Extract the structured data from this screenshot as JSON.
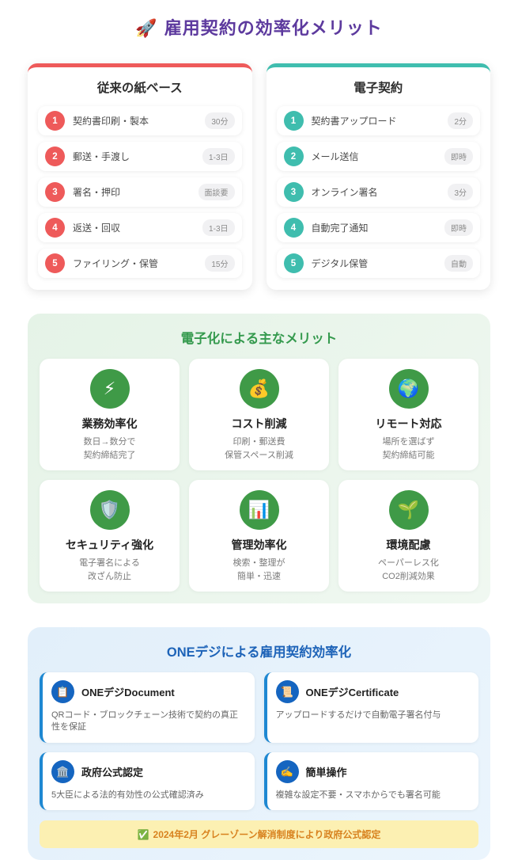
{
  "page": {
    "title": "雇用契約の効率化メリット",
    "title_icon": "🚀",
    "title_color": "#5d3a9e"
  },
  "comparison": {
    "paper": {
      "title": "従来の紙ベース",
      "accent_color": "#ee5a5a",
      "steps": [
        {
          "num": "1",
          "label": "契約書印刷・製本",
          "badge": "30分"
        },
        {
          "num": "2",
          "label": "郵送・手渡し",
          "badge": "1-3日"
        },
        {
          "num": "3",
          "label": "署名・押印",
          "badge": "面談要"
        },
        {
          "num": "4",
          "label": "返送・回収",
          "badge": "1-3日"
        },
        {
          "num": "5",
          "label": "ファイリング・保管",
          "badge": "15分"
        }
      ]
    },
    "digital": {
      "title": "電子契約",
      "accent_color": "#3fbdae",
      "steps": [
        {
          "num": "1",
          "label": "契約書アップロード",
          "badge": "2分"
        },
        {
          "num": "2",
          "label": "メール送信",
          "badge": "即時"
        },
        {
          "num": "3",
          "label": "オンライン署名",
          "badge": "3分"
        },
        {
          "num": "4",
          "label": "自動完了通知",
          "badge": "即時"
        },
        {
          "num": "5",
          "label": "デジタル保管",
          "badge": "自動"
        }
      ]
    }
  },
  "benefits": {
    "title": "電子化による主なメリット",
    "title_color": "#359a4e",
    "icon_bg_color": "#3f9a47",
    "items": [
      {
        "icon": "⚡",
        "icon_name": "lightning-icon",
        "title": "業務効率化",
        "line1": "数日→数分で",
        "line2": "契約締結完了"
      },
      {
        "icon": "💰",
        "icon_name": "money-bag-icon",
        "title": "コスト削減",
        "line1": "印刷・郵送費",
        "line2": "保管スペース削減"
      },
      {
        "icon": "🌍",
        "icon_name": "globe-icon",
        "title": "リモート対応",
        "line1": "場所を選ばず",
        "line2": "契約締結可能"
      },
      {
        "icon": "🛡️",
        "icon_name": "shield-icon",
        "title": "セキュリティ強化",
        "line1": "電子署名による",
        "line2": "改ざん防止"
      },
      {
        "icon": "📊",
        "icon_name": "bar-chart-icon",
        "title": "管理効率化",
        "line1": "検索・整理が",
        "line2": "簡単・迅速"
      },
      {
        "icon": "🌱",
        "icon_name": "seedling-icon",
        "title": "環境配慮",
        "line1": "ペーパーレス化",
        "line2": "CO2削減効果"
      }
    ]
  },
  "onedigi": {
    "title": "ONEデジによる雇用契約効率化",
    "title_color": "#1d63b8",
    "icon_bg_color": "#1565c0",
    "features": [
      {
        "icon": "📋",
        "icon_name": "clipboard-icon",
        "title": "ONEデジDocument",
        "desc": "QRコード・ブロックチェーン技術で契約の真正性を保証"
      },
      {
        "icon": "📜",
        "icon_name": "certificate-icon",
        "title": "ONEデジCertificate",
        "desc": "アップロードするだけで自動電子署名付与"
      },
      {
        "icon": "🏛️",
        "icon_name": "government-building-icon",
        "title": "政府公式認定",
        "desc": "5大臣による法的有効性の公式確認済み"
      },
      {
        "icon": "✍️",
        "icon_name": "signing-hand-icon",
        "title": "簡単操作",
        "desc": "複雑な設定不要・スマホからでも署名可能"
      }
    ],
    "banner": {
      "check_icon": "✅",
      "text": "2024年2月 グレーゾーン解消制度により政府公式認定",
      "bg_color": "#fcf0b2",
      "text_color": "#d8821f"
    }
  }
}
